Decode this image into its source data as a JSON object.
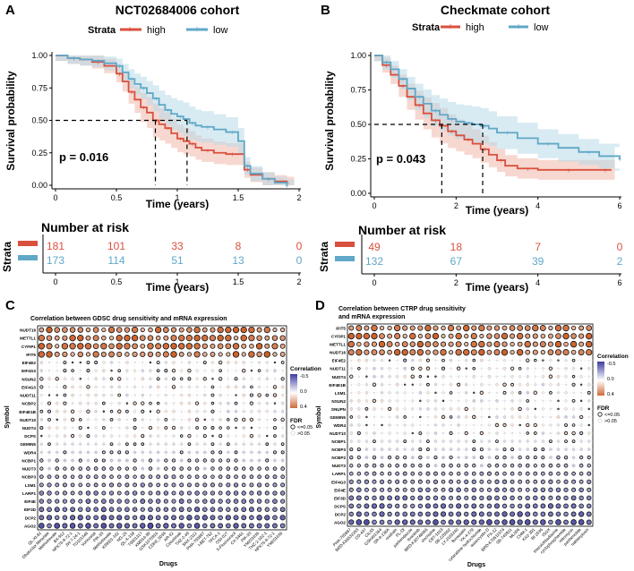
{
  "colors": {
    "high": "#d9503e",
    "low": "#5fa8c8",
    "high_fill": "#f0b8ac",
    "low_fill": "#b8dbe8",
    "neg": "#cf6a3a",
    "pos": "#3c3ca0"
  },
  "legend": {
    "strata_label": "Strata",
    "high_label": "high",
    "low_label": "low"
  },
  "panels": {
    "A": {
      "letter": "A",
      "title": "NCT02684006 cohort",
      "ylabel": "Survival probability",
      "xlabel": "Time (years)",
      "pvalue": "p = 0.016",
      "risk_title": "Number at risk",
      "risk_strata": "Strata",
      "risk_xlabel": "Time (years)"
    },
    "B": {
      "letter": "B",
      "title": "Checkmate cohort",
      "ylabel": "Survival probability",
      "xlabel": "Time (years)",
      "pvalue": "p = 0.043",
      "risk_title": "Number at risk",
      "risk_strata": "Strata",
      "risk_xlabel": "Time (years)"
    },
    "C": {
      "letter": "C",
      "title": "Correlation between GDSC drug sensitivity and mRNA expression",
      "xlabel": "Drugs",
      "ylabel": "Symbol"
    },
    "D": {
      "letter": "D",
      "title_line1": "Correlation between CTRP drug sensitivity",
      "title_line2": "and mRNA expression",
      "xlabel": "Drugs",
      "ylabel": "Symbol"
    }
  },
  "colorbar": {
    "title": "Correlation",
    "ticks": [
      "-0.5",
      "0.0",
      "0.4"
    ]
  },
  "fdr_legend": {
    "title": "FDR",
    "items": [
      "<=0.05",
      ">0.05"
    ]
  },
  "chart_data": [
    {
      "type": "line",
      "title": "NCT02684006 cohort",
      "xlabel": "Time (years)",
      "ylabel": "Survival probability",
      "xlim": [
        0,
        2
      ],
      "ylim": [
        0,
        1
      ],
      "xticks": [
        "0",
        "0.5",
        "1",
        "1.5",
        "2"
      ],
      "yticks": [
        "0.00",
        "0.25",
        "0.50",
        "0.75",
        "1.00"
      ],
      "median_line": 0.5,
      "series": [
        {
          "name": "high",
          "x": [
            0,
            0.1,
            0.2,
            0.3,
            0.4,
            0.5,
            0.55,
            0.6,
            0.65,
            0.7,
            0.75,
            0.8,
            0.85,
            0.9,
            0.95,
            1.0,
            1.05,
            1.1,
            1.15,
            1.2,
            1.3,
            1.4,
            1.5,
            1.55,
            1.6,
            1.7,
            1.8,
            1.9
          ],
          "y": [
            1.0,
            0.98,
            0.97,
            0.95,
            0.92,
            0.86,
            0.8,
            0.72,
            0.66,
            0.6,
            0.56,
            0.5,
            0.47,
            0.44,
            0.4,
            0.36,
            0.34,
            0.32,
            0.29,
            0.27,
            0.25,
            0.24,
            0.24,
            0.12,
            0.08,
            0.05,
            0.03,
            0.02
          ],
          "median": 0.82
        },
        {
          "name": "low",
          "x": [
            0,
            0.1,
            0.2,
            0.3,
            0.4,
            0.5,
            0.55,
            0.6,
            0.65,
            0.7,
            0.75,
            0.8,
            0.85,
            0.9,
            0.95,
            1.0,
            1.05,
            1.1,
            1.15,
            1.2,
            1.3,
            1.4,
            1.5,
            1.55,
            1.6,
            1.7,
            1.8,
            1.9
          ],
          "y": [
            1.0,
            0.98,
            0.97,
            0.96,
            0.94,
            0.92,
            0.87,
            0.82,
            0.78,
            0.75,
            0.71,
            0.67,
            0.62,
            0.58,
            0.55,
            0.53,
            0.51,
            0.48,
            0.46,
            0.45,
            0.43,
            0.41,
            0.34,
            0.15,
            0.09,
            0.05,
            0.02,
            0.0
          ],
          "median": 1.08
        }
      ],
      "p_value": "p = 0.016",
      "risk_table": {
        "times": [
          "0",
          "0.5",
          "1",
          "1.5",
          "2"
        ],
        "high": [
          "181",
          "101",
          "33",
          "8",
          "0"
        ],
        "low": [
          "173",
          "114",
          "51",
          "13",
          "0"
        ]
      }
    },
    {
      "type": "line",
      "title": "Checkmate cohort",
      "xlabel": "Time (years)",
      "ylabel": "Survival probability",
      "xlim": [
        0,
        6
      ],
      "ylim": [
        0,
        1
      ],
      "xticks": [
        "0",
        "2",
        "4",
        "6"
      ],
      "yticks": [
        "0.00",
        "0.25",
        "0.50",
        "0.75",
        "1.00"
      ],
      "median_line": 0.5,
      "series": [
        {
          "name": "high",
          "x": [
            0,
            0.2,
            0.4,
            0.6,
            0.8,
            1.0,
            1.2,
            1.4,
            1.6,
            1.8,
            2.0,
            2.2,
            2.4,
            2.6,
            2.8,
            3.0,
            3.2,
            3.5,
            4.0,
            4.5,
            5.0,
            5.5,
            5.8
          ],
          "y": [
            1.0,
            0.93,
            0.86,
            0.78,
            0.7,
            0.64,
            0.58,
            0.53,
            0.49,
            0.45,
            0.42,
            0.39,
            0.36,
            0.32,
            0.28,
            0.24,
            0.2,
            0.18,
            0.17,
            0.17,
            0.17,
            0.17,
            0.17
          ],
          "median": 1.65
        },
        {
          "name": "low",
          "x": [
            0,
            0.2,
            0.4,
            0.6,
            0.8,
            1.0,
            1.2,
            1.4,
            1.6,
            1.8,
            2.0,
            2.2,
            2.4,
            2.6,
            2.8,
            3.0,
            3.5,
            4.0,
            4.5,
            5.0,
            5.5,
            6.0
          ],
          "y": [
            1.0,
            0.95,
            0.9,
            0.83,
            0.76,
            0.7,
            0.65,
            0.6,
            0.57,
            0.54,
            0.52,
            0.51,
            0.5,
            0.49,
            0.47,
            0.44,
            0.4,
            0.36,
            0.33,
            0.3,
            0.27,
            0.25
          ],
          "median": 2.65
        }
      ],
      "p_value": "p = 0.043",
      "risk_table": {
        "times": [
          "0",
          "2",
          "4",
          "6"
        ],
        "high": [
          "49",
          "18",
          "7",
          "0"
        ],
        "low": [
          "132",
          "67",
          "39",
          "2"
        ]
      }
    },
    {
      "type": "scatter",
      "title": "Correlation between GDSC drug sensitivity and mRNA expression",
      "xlabel": "Drugs",
      "ylabel": "Symbol",
      "symbols": [
        "NUDT16",
        "METTL1",
        "CYFIP1",
        "IFIT5",
        "EIF4E2",
        "EIF4G3",
        "NSUN2",
        "EIF4G3",
        "NUDT11",
        "NCBP2",
        "EIF4E1B",
        "NUDT10",
        "NUDT4",
        "DCPS",
        "GEMIN5",
        "WDR4",
        "NCBP1",
        "NUDT3",
        "NCBP3",
        "LSM1",
        "LARP1",
        "EIF4E",
        "EIF3D",
        "DCP2",
        "AGO2"
      ],
      "drugs": [
        "QL-XI-92",
        "Obatoclax Mesylate",
        "Methotrexate",
        "BX-912",
        "NPK76-II-72-1",
        "JW-7-24-1",
        "TG101348",
        "Vorinostat",
        "PIK-93",
        "Methotrexate",
        "KIN001-102",
        "NG-25",
        "QL-X-138",
        "T0901317",
        "XMD14-99",
        "GSK1070916",
        "CDK9_5038",
        "AR-42",
        "Cetuximab",
        "THZ-2-49",
        "SNX-2112",
        "PHA-793887",
        "I-BET-762",
        "TPCA-1",
        "OSI-027",
        "5-Fluorouracil",
        "CX-5461",
        "PIK-93",
        "YM201636",
        "THZ-2-102-1",
        "NPK76-II-72-1",
        "YM201636"
      ],
      "legend_title": "Correlation",
      "color_range": [
        -0.5,
        0.4
      ]
    },
    {
      "type": "scatter",
      "title": "Correlation between CTRP drug sensitivity and mRNA expression",
      "xlabel": "Drugs",
      "ylabel": "Symbol",
      "symbols": [
        "IFIT5",
        "CYFIP1",
        "METTL1",
        "NUDT16",
        "EIF4E2",
        "NUDT11",
        "NUDT4",
        "EIF4E1B",
        "LSM1",
        "NSUN2",
        "SNUPN",
        "GEMIN5",
        "WDR4",
        "NUDT10",
        "NCBP1",
        "NCBP3",
        "NCBP2",
        "NUDT3",
        "LARP1",
        "EIF4G3",
        "EIF4E",
        "EIF3D",
        "DCPS",
        "DCP2",
        "AGO2"
      ],
      "drugs": [
        "PHA-793887",
        "BRD-K66532283",
        "CD-437",
        "CIL55",
        "GSK461364",
        "SR-II-138A",
        "ouabain",
        "PL-DI",
        "parbendazole",
        "tivantinib",
        "BRD-K30748066",
        "vincristine",
        "CBT-1019",
        "SB-225002",
        "LY-2183240",
        "fluvastatin",
        "YK-4-279",
        "cytarabine hydrochloride",
        "austocystin D",
        "PX-12",
        "BRD-K70511574",
        "SB-743921",
        "ML006",
        "CHM-1",
        "KX2-391",
        "BI-2536",
        "ISOX",
        "triazolothiadiazine",
        "cyclophosphamide",
        "mitomycin",
        "parthenolide",
        "nakiterpiosin"
      ],
      "legend_title": "Correlation",
      "color_range": [
        -0.5,
        0.4
      ]
    }
  ]
}
